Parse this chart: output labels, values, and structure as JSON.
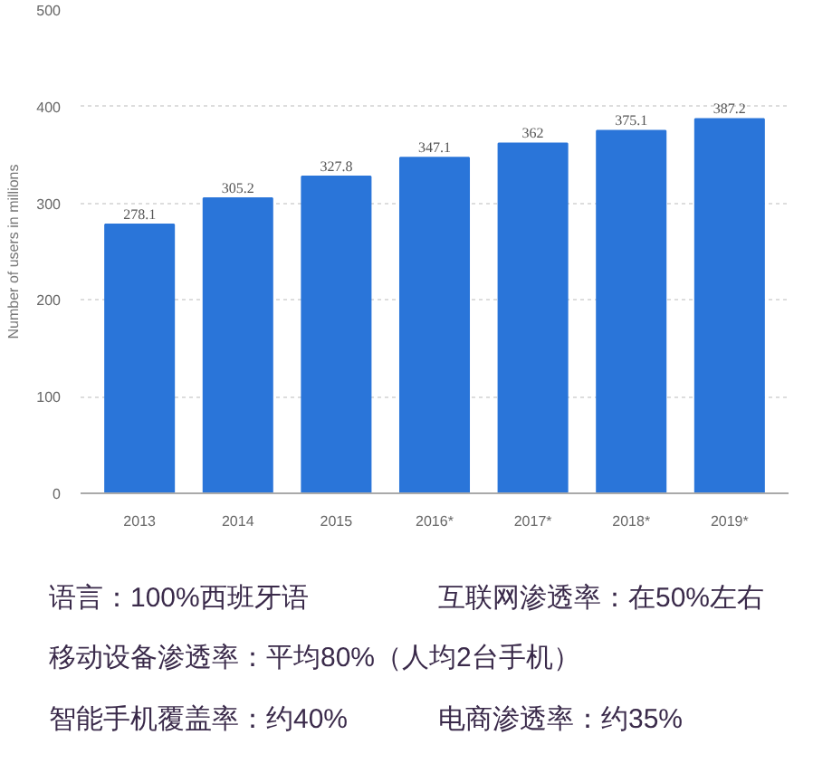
{
  "chart_data": {
    "type": "bar",
    "ylabel": "Number of users in millions",
    "categories": [
      "2013",
      "2014",
      "2015",
      "2016*",
      "2017*",
      "2018*",
      "2019*"
    ],
    "values": [
      278.1,
      305.2,
      327.8,
      347.1,
      362,
      375.1,
      387.2
    ],
    "color": "#2a75d9",
    "data_labels": true,
    "ylim": [
      0,
      500
    ],
    "yticks": [
      0,
      100,
      200,
      300,
      400,
      500
    ],
    "grid": "y",
    "annotations": [
      "语言：100%西班牙语",
      "互联网渗透率：在50%左右",
      "移动设备渗透率：平均80%（人均2台手机）",
      "智能手机覆盖率：约40%",
      "电商渗透率：约35%"
    ]
  }
}
